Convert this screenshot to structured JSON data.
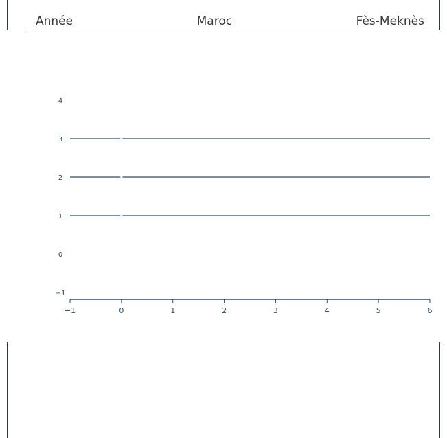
{
  "table": {
    "columns": [
      "Année",
      "Maroc",
      "Fès-Meknès"
    ]
  },
  "chart_data": {
    "type": "line",
    "xlim": [
      -1,
      6
    ],
    "ylim": [
      -1,
      4.5
    ],
    "x_ticks": [
      -1,
      0,
      1,
      2,
      3,
      4,
      5,
      6
    ],
    "x_tick_labels": [
      "−1",
      "0",
      "1",
      "2",
      "3",
      "4",
      "5",
      "6"
    ],
    "y_ticks": [
      -1,
      0,
      1,
      2,
      3,
      4
    ],
    "y_tick_labels": [
      "−1",
      "0",
      "1",
      "2",
      "3",
      "4"
    ],
    "grid": false,
    "series": [
      {
        "x": [
          -1,
          6
        ],
        "y": [
          3,
          3
        ]
      },
      {
        "x": [
          -1,
          6
        ],
        "y": [
          2,
          2
        ]
      },
      {
        "x": [
          -1,
          6
        ],
        "y": [
          1,
          1
        ]
      }
    ],
    "colors": {
      "line": "#2d4a6b",
      "axis": "#2d4a6b",
      "gap": "#ffffff"
    }
  }
}
